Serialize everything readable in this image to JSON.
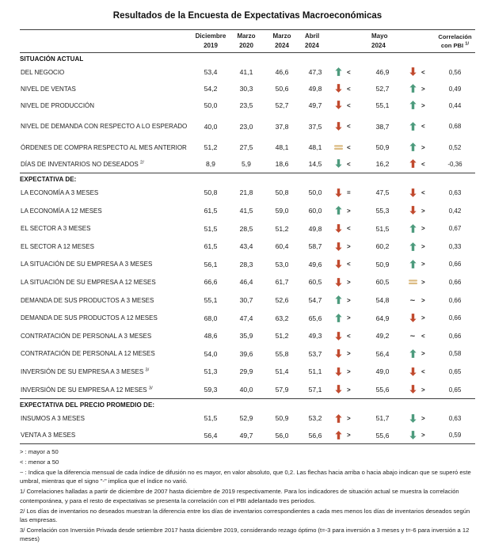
{
  "title": "Resultados de la Encuesta de Expectativas Macroeconómicas",
  "colors": {
    "green": "#4D9B7D",
    "red": "#C14A2E",
    "tan": "#DCBC84",
    "rule": "#3f3f3f"
  },
  "table": {
    "columns": [
      {
        "line1": "Diciembre",
        "line2": "2019"
      },
      {
        "line1": "Marzo",
        "line2": "2020"
      },
      {
        "line1": "Marzo",
        "line2": "2024"
      },
      {
        "line1": "Abril",
        "line2": "2024"
      },
      {
        "line1": "Mayo",
        "line2": "2024"
      },
      {
        "line1": "Correlación",
        "line2": "con PBI",
        "sup": "1/"
      }
    ],
    "sections": [
      {
        "header": "SITUACIÓN ACTUAL",
        "rows": [
          {
            "label": "DEL NEGOCIO",
            "sup": "",
            "gap": false,
            "values": [
              "53,4",
              "41,1",
              "46,6"
            ],
            "abr": {
              "v": "47,3",
              "ind": "up-green",
              "cmp": "<"
            },
            "may": {
              "v": "46,9",
              "ind": "down-red",
              "cmp": "<"
            },
            "corr": "0,56"
          },
          {
            "label": "NIVEL DE VENTAS",
            "sup": "",
            "gap": false,
            "values": [
              "54,2",
              "30,3",
              "50,6"
            ],
            "abr": {
              "v": "49,8",
              "ind": "down-red",
              "cmp": "<"
            },
            "may": {
              "v": "52,7",
              "ind": "up-green",
              "cmp": ">"
            },
            "corr": "0,49"
          },
          {
            "label": "NIVEL DE PRODUCCIÓN",
            "sup": "",
            "gap": false,
            "values": [
              "50,0",
              "23,5",
              "52,7"
            ],
            "abr": {
              "v": "49,7",
              "ind": "down-red",
              "cmp": "<"
            },
            "may": {
              "v": "55,1",
              "ind": "up-green",
              "cmp": ">"
            },
            "corr": "0,44"
          },
          {
            "label": "NIVEL DE DEMANDA CON RESPECTO A LO ESPERADO",
            "sup": "",
            "gap": true,
            "values": [
              "40,0",
              "23,0",
              "37,8"
            ],
            "abr": {
              "v": "37,5",
              "ind": "down-red",
              "cmp": "<"
            },
            "may": {
              "v": "38,7",
              "ind": "up-green",
              "cmp": "<"
            },
            "corr": "0,68"
          },
          {
            "label": "ÓRDENES DE COMPRA RESPECTO AL MES ANTERIOR",
            "sup": "",
            "gap": true,
            "values": [
              "51,2",
              "27,5",
              "48,1"
            ],
            "abr": {
              "v": "48,1",
              "ind": "equal",
              "cmp": "<"
            },
            "may": {
              "v": "50,9",
              "ind": "up-green",
              "cmp": ">"
            },
            "corr": "0,52"
          },
          {
            "label": "DÍAS DE INVENTARIOS NO DESEADOS",
            "sup": "2/",
            "gap": false,
            "values": [
              "8,9",
              "5,9",
              "18,6"
            ],
            "abr": {
              "v": "14,5",
              "ind": "down-green",
              "cmp": "<"
            },
            "may": {
              "v": "16,2",
              "ind": "up-red",
              "cmp": "<"
            },
            "corr": "-0,36"
          }
        ]
      },
      {
        "header": "EXPECTATIVA DE:",
        "rows": [
          {
            "label": "LA ECONOMÍA A 3 MESES",
            "sup": "",
            "gap": false,
            "values": [
              "50,8",
              "21,8",
              "50,8"
            ],
            "abr": {
              "v": "50,0",
              "ind": "down-red",
              "cmp": "="
            },
            "may": {
              "v": "47,5",
              "ind": "down-red",
              "cmp": "<"
            },
            "corr": "0,63"
          },
          {
            "label": "LA ECONOMÍA A 12 MESES",
            "sup": "",
            "gap": false,
            "values": [
              "61,5",
              "41,5",
              "59,0"
            ],
            "abr": {
              "v": "60,0",
              "ind": "up-green",
              "cmp": ">"
            },
            "may": {
              "v": "55,3",
              "ind": "down-red",
              "cmp": ">"
            },
            "corr": "0,42"
          },
          {
            "label": "EL SECTOR A 3 MESES",
            "sup": "",
            "gap": false,
            "values": [
              "51,5",
              "28,5",
              "51,2"
            ],
            "abr": {
              "v": "49,8",
              "ind": "down-red",
              "cmp": "<"
            },
            "may": {
              "v": "51,5",
              "ind": "up-green",
              "cmp": ">"
            },
            "corr": "0,67"
          },
          {
            "label": "EL SECTOR A 12 MESES",
            "sup": "",
            "gap": false,
            "values": [
              "61,5",
              "43,4",
              "60,4"
            ],
            "abr": {
              "v": "58,7",
              "ind": "down-red",
              "cmp": ">"
            },
            "may": {
              "v": "60,2",
              "ind": "up-green",
              "cmp": ">"
            },
            "corr": "0,33"
          },
          {
            "label": "LA SITUACIÓN DE SU EMPRESA A 3 MESES",
            "sup": "",
            "gap": false,
            "values": [
              "56,1",
              "28,3",
              "53,0"
            ],
            "abr": {
              "v": "49,6",
              "ind": "down-red",
              "cmp": "<"
            },
            "may": {
              "v": "50,9",
              "ind": "up-green",
              "cmp": ">"
            },
            "corr": "0,66"
          },
          {
            "label": "LA SITUACIÓN DE SU EMPRESA A 12 MESES",
            "sup": "",
            "gap": false,
            "values": [
              "66,6",
              "46,4",
              "61,7"
            ],
            "abr": {
              "v": "60,5",
              "ind": "down-red",
              "cmp": ">"
            },
            "may": {
              "v": "60,5",
              "ind": "equal",
              "cmp": ">"
            },
            "corr": "0,66"
          },
          {
            "label": "DEMANDA DE SUS PRODUCTOS A 3 MESES",
            "sup": "",
            "gap": false,
            "values": [
              "55,1",
              "30,7",
              "52,6"
            ],
            "abr": {
              "v": "54,7",
              "ind": "up-green",
              "cmp": ">"
            },
            "may": {
              "v": "54,8",
              "ind": "tilde",
              "cmp": ">"
            },
            "corr": "0,66"
          },
          {
            "label": "DEMANDA DE SUS PRODUCTOS A 12 MESES",
            "sup": "",
            "gap": false,
            "values": [
              "68,0",
              "47,4",
              "63,2"
            ],
            "abr": {
              "v": "65,6",
              "ind": "up-green",
              "cmp": ">"
            },
            "may": {
              "v": "64,9",
              "ind": "down-red",
              "cmp": ">"
            },
            "corr": "0,66"
          },
          {
            "label": "CONTRATACIÓN DE PERSONAL A 3 MESES",
            "sup": "",
            "gap": false,
            "values": [
              "48,6",
              "35,9",
              "51,2"
            ],
            "abr": {
              "v": "49,3",
              "ind": "down-red",
              "cmp": "<"
            },
            "may": {
              "v": "49,2",
              "ind": "tilde",
              "cmp": "<"
            },
            "corr": "0,66"
          },
          {
            "label": "CONTRATACIÓN DE PERSONAL A 12 MESES",
            "sup": "",
            "gap": false,
            "values": [
              "54,0",
              "39,6",
              "55,8"
            ],
            "abr": {
              "v": "53,7",
              "ind": "down-red",
              "cmp": ">"
            },
            "may": {
              "v": "56,4",
              "ind": "up-green",
              "cmp": ">"
            },
            "corr": "0,58"
          },
          {
            "label": "INVERSIÓN DE SU EMPRESA A 3 MESES",
            "sup": "3/",
            "gap": false,
            "values": [
              "51,3",
              "29,9",
              "51,4"
            ],
            "abr": {
              "v": "51,1",
              "ind": "down-red",
              "cmp": ">"
            },
            "may": {
              "v": "49,0",
              "ind": "down-red",
              "cmp": "<"
            },
            "corr": "0,65"
          },
          {
            "label": "INVERSIÓN DE SU EMPRESA A 12 MESES",
            "sup": "3/",
            "gap": false,
            "values": [
              "59,3",
              "40,0",
              "57,9"
            ],
            "abr": {
              "v": "57,1",
              "ind": "down-red",
              "cmp": ">"
            },
            "may": {
              "v": "55,6",
              "ind": "down-red",
              "cmp": ">"
            },
            "corr": "0,65"
          }
        ]
      },
      {
        "header": "EXPECTATIVA DEL PRECIO PROMEDIO DE:",
        "rows": [
          {
            "label": "INSUMOS A 3 MESES",
            "sup": "",
            "gap": false,
            "values": [
              "51,5",
              "52,9",
              "50,9"
            ],
            "abr": {
              "v": "53,2",
              "ind": "up-red",
              "cmp": ">"
            },
            "may": {
              "v": "51,7",
              "ind": "down-green",
              "cmp": ">"
            },
            "corr": "0,63"
          },
          {
            "label": "VENTA A 3 MESES",
            "sup": "",
            "gap": false,
            "values": [
              "56,4",
              "49,7",
              "56,0"
            ],
            "abr": {
              "v": "56,6",
              "ind": "up-red",
              "cmp": ">"
            },
            "may": {
              "v": "55,6",
              "ind": "down-green",
              "cmp": ">"
            },
            "corr": "0,59"
          }
        ]
      }
    ]
  },
  "footnotes": [
    "> : mayor a 50",
    "< : menor a 50",
    "~ : Indica que la diferencia mensual de cada índice de difusión no es mayor, en valor absoluto, que 0,2. Las flechas hacia arriba o hacia abajo indican que se superó este umbral, mientras que el signo \"-\" implica que el índice no varió.",
    "1/ Correlaciones halladas a partir de diciembre de 2007 hasta diciembre de 2019 respectivamente. Para los indicadores de situación actual se muestra la correlación contemporánea, y para el resto de expectativas se presenta la correlación con el PBI adelantado tres periodos.",
    "2/ Los días de inventarios no deseados muestran la diferencia entre los días de inventarios correspondientes a cada mes menos los días de inventarios deseados según las empresas.",
    "3/ Correlación con Inversión Privada desde setiembre 2017 hasta diciembre 2019, considerando rezago óptimo (t=-3 para inversión a 3 meses y t=-6 para inversión a 12 meses)"
  ]
}
